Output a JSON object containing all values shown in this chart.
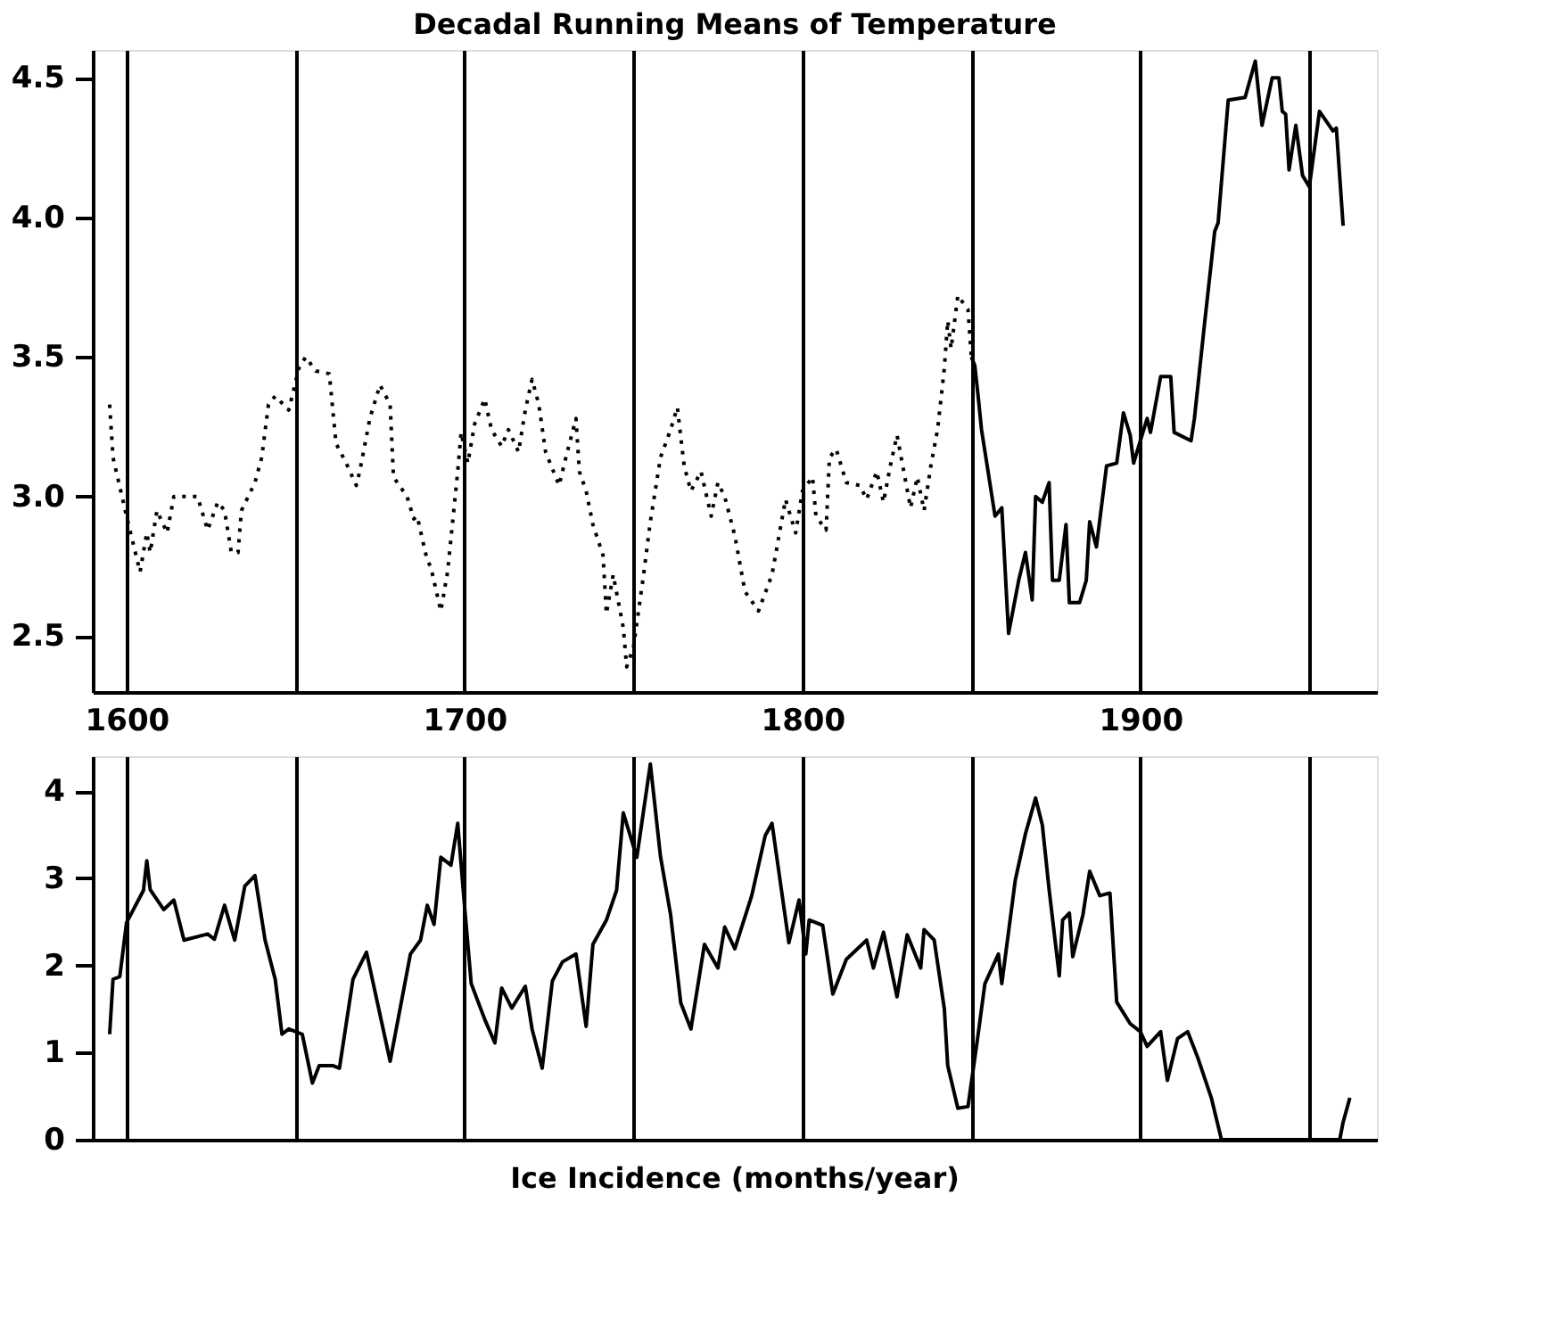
{
  "chart_data": [
    {
      "type": "line",
      "title": "Decadal Running Means of Temperature",
      "xlim": [
        1590,
        1970
      ],
      "ylim": [
        2.3,
        4.6
      ],
      "xticks": [
        1600,
        {
          "value": 1650,
          "label": null
        },
        1700,
        {
          "value": 1750,
          "label": null
        },
        1800,
        {
          "value": 1850,
          "label": null
        },
        1900,
        {
          "value": 1950,
          "label": null
        }
      ],
      "yticks": [
        {
          "value": 2.5,
          "label": "2.5"
        },
        {
          "value": 3.0,
          "label": "3.0"
        },
        {
          "value": 3.5,
          "label": "3.5"
        },
        {
          "value": 4.0,
          "label": "4.0"
        },
        {
          "value": 4.5,
          "label": "4.5"
        }
      ],
      "grid": "x",
      "series": [
        {
          "color": "#000000",
          "line_style": "dotted",
          "x": [
            1595,
            1596,
            1600,
            1604,
            1606,
            1607,
            1609,
            1612,
            1614,
            1617,
            1621,
            1624,
            1627,
            1629,
            1631,
            1633,
            1634,
            1638,
            1640,
            1642,
            1644,
            1648,
            1651,
            1653,
            1656,
            1660,
            1662,
            1665,
            1668,
            1669,
            1672,
            1675,
            1678,
            1679,
            1683,
            1685,
            1686,
            1689,
            1690,
            1693,
            1695,
            1698,
            1699,
            1701,
            1703,
            1706,
            1708,
            1711,
            1713,
            1716,
            1718,
            1720,
            1722,
            1724,
            1728,
            1730,
            1733,
            1734,
            1736,
            1738,
            1741,
            1742,
            1744,
            1747,
            1748,
            1750,
            1753,
            1755,
            1758,
            1761,
            1763,
            1765,
            1767,
            1770,
            1773,
            1775,
            1777,
            1780,
            1783,
            1787,
            1791,
            1795,
            1798,
            1800,
            1803,
            1804,
            1807,
            1808,
            1810,
            1813,
            1817,
            1819,
            1822,
            1824,
            1826,
            1828,
            1830,
            1832,
            1834,
            1836,
            1838,
            1840,
            1842,
            1843,
            1844,
            1846,
            1849,
            1850
          ],
          "values": [
            3.33,
            3.14,
            2.93,
            2.73,
            2.87,
            2.8,
            2.95,
            2.87,
            3.0,
            3.0,
            3.0,
            2.88,
            2.98,
            2.95,
            2.8,
            2.8,
            2.95,
            3.05,
            3.14,
            3.33,
            3.36,
            3.31,
            3.46,
            3.5,
            3.45,
            3.44,
            3.19,
            3.12,
            3.04,
            3.09,
            3.28,
            3.4,
            3.33,
            3.07,
            3.0,
            2.92,
            2.93,
            2.77,
            2.75,
            2.59,
            2.73,
            3.09,
            3.23,
            3.12,
            3.26,
            3.35,
            3.24,
            3.18,
            3.24,
            3.16,
            3.31,
            3.42,
            3.33,
            3.16,
            3.04,
            3.14,
            3.28,
            3.09,
            3.02,
            2.9,
            2.79,
            2.58,
            2.72,
            2.53,
            2.39,
            2.46,
            2.72,
            2.91,
            3.14,
            3.24,
            3.32,
            3.11,
            3.02,
            3.09,
            2.93,
            3.05,
            3.0,
            2.86,
            2.66,
            2.59,
            2.72,
            2.99,
            2.87,
            3.02,
            3.07,
            2.93,
            2.88,
            3.14,
            3.17,
            3.05,
            3.04,
            2.99,
            3.09,
            2.98,
            3.11,
            3.22,
            3.09,
            2.96,
            3.07,
            2.95,
            3.11,
            3.24,
            3.46,
            3.63,
            3.53,
            3.72,
            3.67,
            3.5
          ]
        },
        {
          "color": "#000000",
          "line_style": "solid",
          "x": [
            1850,
            1851,
            1852,
            1853,
            1857,
            1859,
            1861,
            1864,
            1866,
            1868,
            1869,
            1871,
            1873,
            1874,
            1876,
            1878,
            1879,
            1882,
            1884,
            1885,
            1887,
            1890,
            1893,
            1895,
            1897,
            1898,
            1902,
            1903,
            1906,
            1909,
            1910,
            1915,
            1916,
            1919,
            1922,
            1923,
            1926,
            1931,
            1934,
            1936,
            1939,
            1941,
            1942,
            1943,
            1944,
            1946,
            1948,
            1950,
            1953,
            1957,
            1958,
            1960
          ],
          "values": [
            3.5,
            3.47,
            3.36,
            3.24,
            2.93,
            2.96,
            2.51,
            2.7,
            2.8,
            2.63,
            3.0,
            2.98,
            3.05,
            2.7,
            2.7,
            2.9,
            2.62,
            2.62,
            2.7,
            2.91,
            2.82,
            3.11,
            3.12,
            3.3,
            3.22,
            3.12,
            3.28,
            3.23,
            3.43,
            3.43,
            3.23,
            3.2,
            3.28,
            3.62,
            3.95,
            3.98,
            4.42,
            4.43,
            4.56,
            4.33,
            4.5,
            4.5,
            4.38,
            4.37,
            4.17,
            4.33,
            4.15,
            4.11,
            4.38,
            4.31,
            4.32,
            3.97
          ]
        }
      ]
    },
    {
      "type": "line",
      "title": "Ice Incidence (months/year)",
      "xlim": [
        1590,
        1970
      ],
      "ylim": [
        0,
        4.4
      ],
      "xticks": [
        1600,
        {
          "value": 1650,
          "label": null
        },
        1700,
        {
          "value": 1750,
          "label": null
        },
        1800,
        {
          "value": 1850,
          "label": null
        },
        1900,
        {
          "value": 1950,
          "label": null
        }
      ],
      "yticks": [
        0,
        1,
        2,
        3,
        4
      ],
      "grid": "x",
      "tick_labels": "y",
      "series": [
        {
          "color": "#000000",
          "line_style": "solid",
          "x": [
            1595,
            1596,
            1598,
            1600,
            1605,
            1606,
            1607,
            1611,
            1614,
            1617,
            1624,
            1626,
            1629,
            1632,
            1635,
            1638,
            1641,
            1644,
            1646,
            1648,
            1652,
            1655,
            1657,
            1661,
            1663,
            1667,
            1671,
            1678,
            1684,
            1687,
            1689,
            1691,
            1693,
            1696,
            1698,
            1700,
            1702,
            1706,
            1709,
            1711,
            1714,
            1718,
            1720,
            1723,
            1726,
            1729,
            1733,
            1736,
            1738,
            1742,
            1745,
            1747,
            1751,
            1755,
            1758,
            1761,
            1764,
            1767,
            1771,
            1775,
            1777,
            1780,
            1785,
            1789,
            1791,
            1796,
            1799,
            1801,
            1802,
            1806,
            1809,
            1813,
            1819,
            1821,
            1824,
            1828,
            1831,
            1835,
            1836,
            1839,
            1842,
            1843,
            1846,
            1849,
            1852,
            1854,
            1858,
            1859,
            1863,
            1866,
            1869,
            1871,
            1873,
            1876,
            1877,
            1879,
            1880,
            1883,
            1885,
            1888,
            1891,
            1893,
            1897,
            1900,
            1902,
            1906,
            1908,
            1911,
            1914,
            1917,
            1921,
            1924,
            1959,
            1960,
            1962
          ],
          "values": [
            1.21,
            1.84,
            1.87,
            2.49,
            2.86,
            3.2,
            2.87,
            2.64,
            2.75,
            2.29,
            2.36,
            2.3,
            2.69,
            2.29,
            2.91,
            3.03,
            2.29,
            1.84,
            1.21,
            1.27,
            1.21,
            0.65,
            0.85,
            0.85,
            0.82,
            1.84,
            2.15,
            0.9,
            2.13,
            2.29,
            2.69,
            2.47,
            3.24,
            3.15,
            3.63,
            2.69,
            1.79,
            1.38,
            1.11,
            1.74,
            1.51,
            1.76,
            1.27,
            0.82,
            1.82,
            2.04,
            2.13,
            1.3,
            2.24,
            2.52,
            2.86,
            3.75,
            3.24,
            4.31,
            3.25,
            2.58,
            1.57,
            1.27,
            2.24,
            1.97,
            2.44,
            2.19,
            2.8,
            3.49,
            3.63,
            2.26,
            2.75,
            2.13,
            2.52,
            2.46,
            1.67,
            2.07,
            2.29,
            1.97,
            2.38,
            1.64,
            2.35,
            1.97,
            2.41,
            2.29,
            1.5,
            0.85,
            0.36,
            0.38,
            1.21,
            1.79,
            2.13,
            1.79,
            2.98,
            3.51,
            3.92,
            3.61,
            2.87,
            1.88,
            2.52,
            2.6,
            2.1,
            2.58,
            3.08,
            2.8,
            2.83,
            1.58,
            1.33,
            1.24,
            1.07,
            1.24,
            0.68,
            1.16,
            1.24,
            0.94,
            0.48,
            0,
            0,
            0.2,
            0.48
          ]
        }
      ]
    }
  ]
}
